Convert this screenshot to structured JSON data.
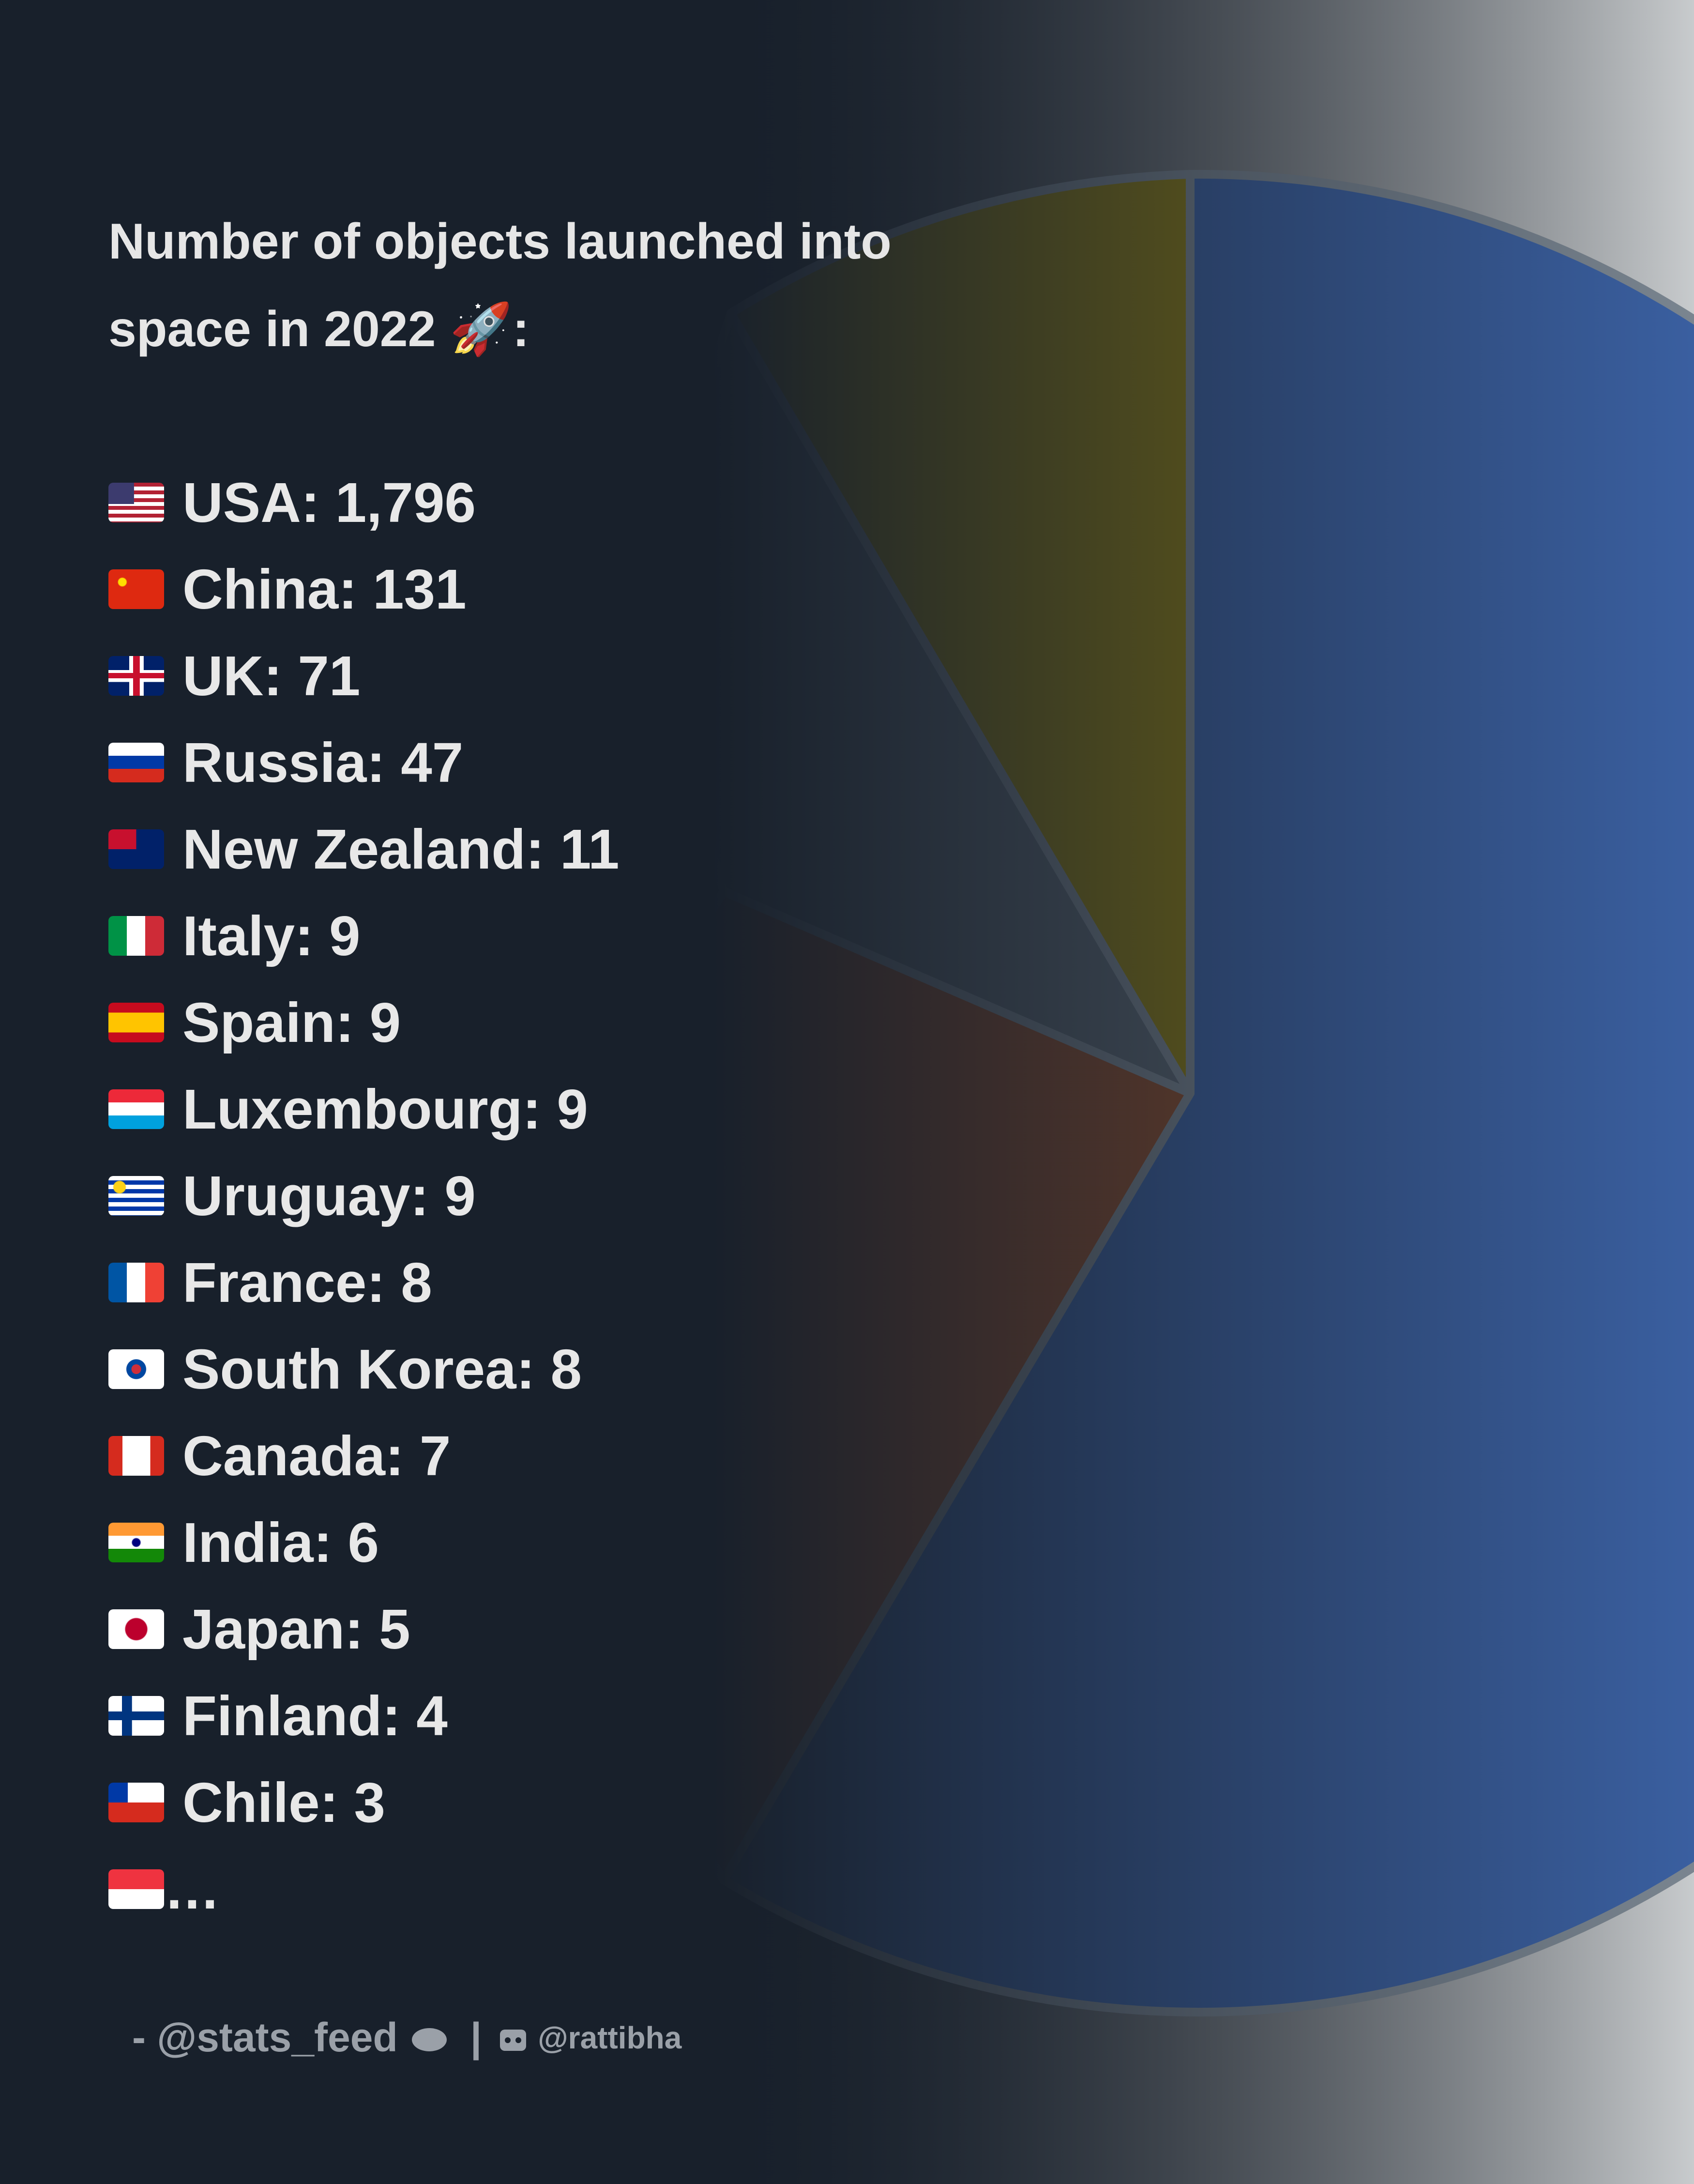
{
  "header": {
    "title_lines": [
      "Number of objects launched into",
      "space in 2022 🚀:"
    ]
  },
  "items": [
    {
      "label": "USA: 1,796"
    },
    {
      "label": "China: 131"
    },
    {
      "label": "UK: 71"
    },
    {
      "label": "Russia: 47"
    },
    {
      "label": "New Zealand: 11"
    },
    {
      "label": "Italy: 9"
    },
    {
      "label": "Spain: 9"
    },
    {
      "label": "Luxembourg: 9"
    },
    {
      "label": "Uruguay: 9"
    },
    {
      "label": "France: 8"
    },
    {
      "label": "South Korea: 8"
    },
    {
      "label": "Canada: 7"
    },
    {
      "label": "India: 6"
    },
    {
      "label": "Japan: 5"
    },
    {
      "label": "Finland: 4"
    },
    {
      "label": "Chile: 3"
    },
    {
      "label": "…"
    }
  ],
  "footer": {
    "author": "- @stats_feed",
    "separator": "|",
    "credit": "@rattibha"
  }
}
